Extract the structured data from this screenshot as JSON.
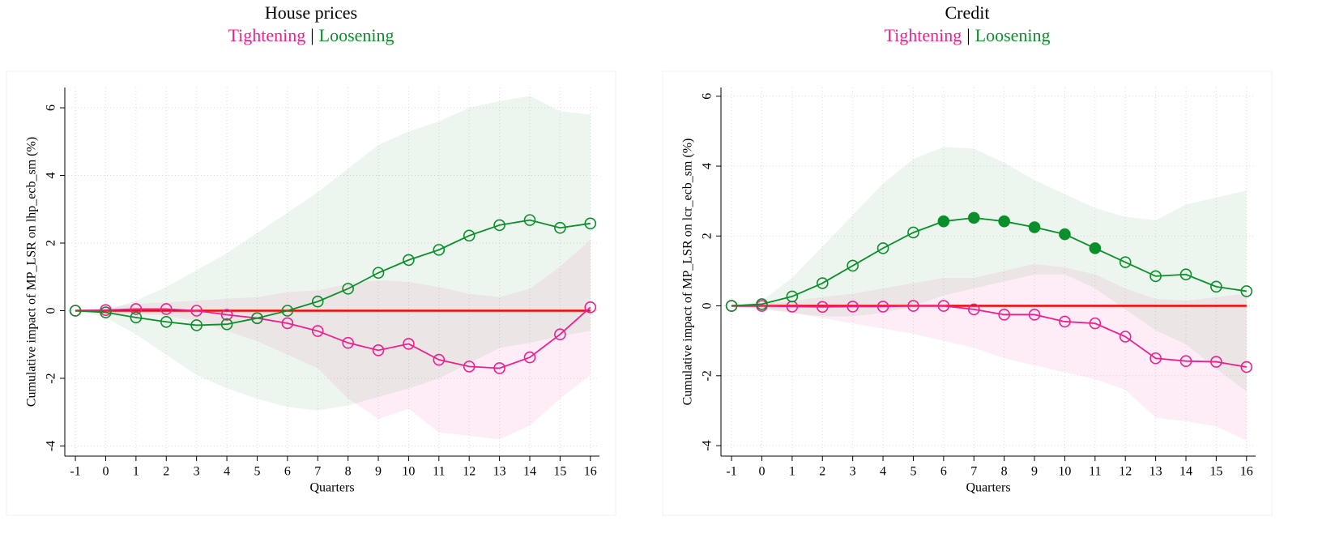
{
  "chart_data": [
    {
      "type": "line",
      "title": "House prices",
      "subtitle_separator": "|",
      "xlabel": "Quarters",
      "ylabel": "Cumulative impact of MP_LSR on lhp_ecb_sm (%)",
      "x": [
        -1,
        0,
        1,
        2,
        3,
        4,
        5,
        6,
        7,
        8,
        9,
        10,
        11,
        12,
        13,
        14,
        15,
        16
      ],
      "xlim": [
        -1.35,
        16.3
      ],
      "xticks": [
        -1,
        0,
        1,
        2,
        3,
        4,
        5,
        6,
        7,
        8,
        9,
        10,
        11,
        12,
        13,
        14,
        15,
        16
      ],
      "ylim": [
        -4.3,
        6.6
      ],
      "yticks": [
        -4,
        -2,
        0,
        2,
        4,
        6
      ],
      "grid": true,
      "hline": 0,
      "hline_color": "#ff0000",
      "series": [
        {
          "name": "Tightening",
          "color": "#ee1f8f",
          "values": [
            0,
            0.02,
            0.05,
            0.05,
            0,
            -0.12,
            -0.22,
            -0.37,
            -0.6,
            -0.95,
            -1.17,
            -0.98,
            -1.45,
            -1.65,
            -1.7,
            -1.38,
            -0.7,
            0.1
          ],
          "upper": [
            0,
            0.1,
            0.2,
            0.25,
            0.3,
            0.35,
            0.4,
            0.55,
            0.6,
            0.8,
            0.9,
            0.85,
            0.7,
            0.5,
            0.4,
            0.65,
            1.3,
            2.1
          ],
          "lower": [
            0,
            -0.1,
            -0.1,
            -0.15,
            -0.3,
            -0.6,
            -0.9,
            -1.3,
            -1.7,
            -2.6,
            -3.2,
            -2.9,
            -3.6,
            -3.7,
            -3.8,
            -3.4,
            -2.6,
            -1.9
          ],
          "filled": [
            false,
            false,
            false,
            false,
            false,
            false,
            false,
            false,
            false,
            false,
            false,
            false,
            false,
            false,
            false,
            false,
            false,
            false
          ]
        },
        {
          "name": "Loosening",
          "color": "#0a8f2a",
          "values": [
            0,
            -0.05,
            -0.2,
            -0.33,
            -0.43,
            -0.4,
            -0.22,
            0,
            0.27,
            0.65,
            1.12,
            1.5,
            1.8,
            2.22,
            2.53,
            2.68,
            2.45,
            2.58
          ],
          "upper": [
            0,
            0,
            0.3,
            0.7,
            1.2,
            1.7,
            2.3,
            2.9,
            3.5,
            4.2,
            4.9,
            5.3,
            5.6,
            6.0,
            6.2,
            6.35,
            5.9,
            5.8
          ],
          "lower": [
            0,
            -0.2,
            -0.7,
            -1.3,
            -1.9,
            -2.3,
            -2.6,
            -2.85,
            -2.95,
            -2.8,
            -2.55,
            -2.3,
            -2.0,
            -1.55,
            -1.1,
            -0.95,
            -0.75,
            -0.6
          ],
          "filled": [
            false,
            false,
            false,
            false,
            false,
            false,
            false,
            false,
            false,
            false,
            false,
            false,
            false,
            false,
            false,
            false,
            false,
            false
          ]
        }
      ]
    },
    {
      "type": "line",
      "title": "Credit",
      "subtitle_separator": "|",
      "xlabel": "Quarters",
      "ylabel": "Cumulative impact of MP_LSR on lcr_ecb_sm (%)",
      "x": [
        -1,
        0,
        1,
        2,
        3,
        4,
        5,
        6,
        7,
        8,
        9,
        10,
        11,
        12,
        13,
        14,
        15,
        16
      ],
      "xlim": [
        -1.35,
        16.3
      ],
      "xticks": [
        -1,
        0,
        1,
        2,
        3,
        4,
        5,
        6,
        7,
        8,
        9,
        10,
        11,
        12,
        13,
        14,
        15,
        16
      ],
      "ylim": [
        -4.3,
        6.25
      ],
      "yticks": [
        -4,
        -2,
        0,
        2,
        4,
        6
      ],
      "grid": true,
      "hline": 0,
      "hline_color": "#ff0000",
      "series": [
        {
          "name": "Tightening",
          "color": "#ee1f8f",
          "values": [
            0,
            0,
            -0.02,
            -0.03,
            -0.02,
            -0.02,
            0,
            0,
            -0.1,
            -0.25,
            -0.25,
            -0.45,
            -0.5,
            -0.88,
            -1.5,
            -1.58,
            -1.6,
            -1.75
          ],
          "upper": [
            0,
            0.05,
            0.15,
            0.25,
            0.35,
            0.5,
            0.65,
            0.8,
            0.8,
            1.0,
            1.2,
            1.1,
            0.9,
            0.5,
            0.2,
            0.15,
            0.25,
            0.35
          ],
          "lower": [
            0,
            -0.05,
            -0.2,
            -0.35,
            -0.5,
            -0.65,
            -0.8,
            -1.0,
            -1.2,
            -1.5,
            -1.7,
            -1.9,
            -2.1,
            -2.4,
            -3.2,
            -3.3,
            -3.45,
            -3.85
          ],
          "filled": [
            false,
            false,
            false,
            false,
            false,
            false,
            false,
            false,
            false,
            false,
            false,
            false,
            false,
            false,
            false,
            false,
            false,
            false
          ]
        },
        {
          "name": "Loosening",
          "color": "#0a8f2a",
          "values": [
            0,
            0.05,
            0.27,
            0.65,
            1.15,
            1.65,
            2.1,
            2.42,
            2.52,
            2.42,
            2.25,
            2.05,
            1.65,
            1.25,
            0.85,
            0.9,
            0.55,
            0.42
          ],
          "upper": [
            0,
            0.15,
            0.8,
            1.7,
            2.6,
            3.5,
            4.2,
            4.55,
            4.5,
            4.1,
            3.6,
            3.2,
            2.8,
            2.55,
            2.45,
            2.9,
            3.1,
            3.3
          ],
          "lower": [
            0,
            -0.1,
            -0.2,
            -0.3,
            -0.3,
            -0.2,
            0,
            0.3,
            0.5,
            0.7,
            0.9,
            0.9,
            0.5,
            -0.1,
            -0.7,
            -1.1,
            -1.8,
            -2.45
          ],
          "filled": [
            false,
            false,
            false,
            false,
            false,
            false,
            false,
            true,
            true,
            true,
            true,
            true,
            true,
            false,
            false,
            false,
            false,
            false
          ]
        }
      ]
    }
  ]
}
